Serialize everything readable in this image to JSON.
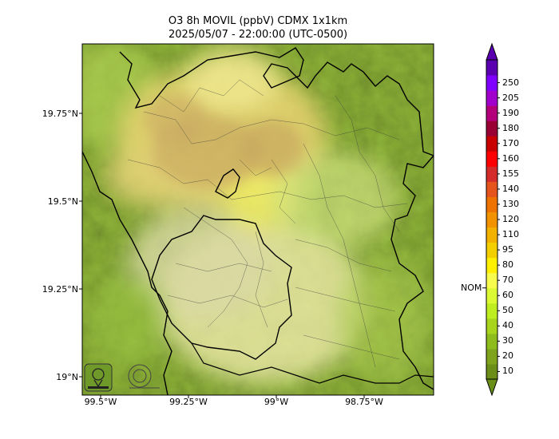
{
  "title_line1": "O3 8h MOVIL (ppbV) CDMX 1x1km",
  "title_line2": "2025/05/07 - 22:00:00 (UTC-0500)",
  "map": {
    "lat_ticks": [
      "19.75°N",
      "19.5°N",
      "19.25°N",
      "19°N"
    ],
    "lon_ticks": [
      "99.5°W",
      "99.25°W",
      "99°W",
      "98.75°W"
    ],
    "logos": [
      "sedema-logo",
      "cdmx-logo"
    ],
    "colors": {
      "background": "#8fb832",
      "plume": "#d7c261",
      "border": "#000000"
    }
  },
  "colorbar": {
    "marker_label": "NOM",
    "marker_value": 65,
    "levels": [
      "10",
      "20",
      "30",
      "40",
      "50",
      "60",
      "70",
      "80",
      "95",
      "110",
      "120",
      "130",
      "140",
      "155",
      "160",
      "170",
      "180",
      "190",
      "205",
      "250"
    ],
    "colors": [
      "#6a8e17",
      "#7ea41d",
      "#8fbc1d",
      "#a7d41d",
      "#bfee20",
      "#dcfa33",
      "#f6fb4e",
      "#fff000",
      "#f4cf00",
      "#f3b100",
      "#f29200",
      "#ef7300",
      "#e6541e",
      "#d42b2b",
      "#ff0000",
      "#c80000",
      "#990033",
      "#b3007a",
      "#a100cc",
      "#8000ff",
      "#5a00b0"
    ]
  }
}
